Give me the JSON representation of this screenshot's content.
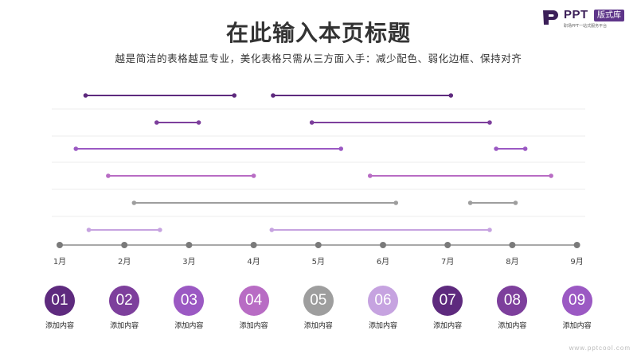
{
  "logo": {
    "brand": "PPT",
    "badge": "版式库",
    "tagline": "职场PPT一站式服务平台"
  },
  "title": "在此输入本页标题",
  "subtitle": "越是简洁的表格越显专业，美化表格只需从三方面入手：减少配色、弱化边框、保持对齐",
  "colors": {
    "dark_purple": "#5e2a7e",
    "mid_purple": "#7d3f9c",
    "violet": "#9b59c3",
    "orchid": "#b86cc4",
    "gray": "#9e9e9e",
    "lavender": "#c6a3e0",
    "axis": "#8c8c8c"
  },
  "chart_data": {
    "type": "gantt",
    "x_axis": {
      "ticks": [
        "1月",
        "2月",
        "3月",
        "4月",
        "5月",
        "6月",
        "7月",
        "8月",
        "9月"
      ],
      "tick_values": [
        1,
        2,
        3,
        4,
        5,
        6,
        7,
        8,
        9
      ]
    },
    "rows": [
      {
        "color": "#5e2a7e",
        "segments": [
          [
            1.4,
            3.7
          ],
          [
            4.3,
            7.05
          ]
        ]
      },
      {
        "color": "#7d3f9c",
        "segments": [
          [
            2.5,
            3.15
          ],
          [
            4.9,
            7.65
          ]
        ]
      },
      {
        "color": "#9b59c3",
        "segments": [
          [
            1.25,
            5.35
          ],
          [
            7.75,
            8.2
          ]
        ]
      },
      {
        "color": "#b86cc4",
        "segments": [
          [
            1.75,
            4.0
          ],
          [
            5.8,
            8.6
          ]
        ]
      },
      {
        "color": "#9e9e9e",
        "segments": [
          [
            2.15,
            6.2
          ],
          [
            7.35,
            8.05
          ]
        ]
      },
      {
        "color": "#c6a3e0",
        "segments": [
          [
            1.45,
            2.55
          ],
          [
            4.28,
            7.65
          ]
        ]
      }
    ]
  },
  "items": [
    {
      "num": "01",
      "label": "添加内容",
      "color": "#5e2a7e"
    },
    {
      "num": "02",
      "label": "添加内容",
      "color": "#7d3f9c"
    },
    {
      "num": "03",
      "label": "添加内容",
      "color": "#9b59c3"
    },
    {
      "num": "04",
      "label": "添加内容",
      "color": "#b86cc4"
    },
    {
      "num": "05",
      "label": "添加内容",
      "color": "#9e9e9e"
    },
    {
      "num": "06",
      "label": "添加内容",
      "color": "#c6a3e0"
    },
    {
      "num": "07",
      "label": "添加内容",
      "color": "#5e2a7e"
    },
    {
      "num": "08",
      "label": "添加内容",
      "color": "#7d3f9c"
    },
    {
      "num": "09",
      "label": "添加内容",
      "color": "#9b59c3"
    }
  ],
  "watermark": "www.pptcool.com"
}
